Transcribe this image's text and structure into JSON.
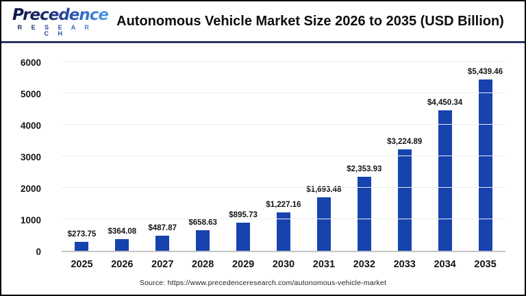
{
  "header": {
    "logo_name": "Precedence",
    "logo_subname": "R E S E A R C H",
    "title": "Autonomous Vehicle Market Size 2026 to 2035 (USD Billion)"
  },
  "chart_data": {
    "type": "bar",
    "title": "Autonomous Vehicle Market Size 2026 to 2035 (USD Billion)",
    "categories": [
      "2025",
      "2026",
      "2027",
      "2028",
      "2029",
      "2030",
      "2031",
      "2032",
      "2033",
      "2034",
      "2035"
    ],
    "values": [
      273.75,
      364.08,
      487.87,
      658.63,
      895.73,
      1227.16,
      1693.48,
      2353.93,
      3224.89,
      4450.34,
      5439.46
    ],
    "value_labels": [
      "$273.75",
      "$364.08",
      "$487.87",
      "$658.63",
      "$895.73",
      "$1,227.16",
      "$1,693.48",
      "$2,353.93",
      "$3,224.89",
      "$4,450.34",
      "$5,439.46"
    ],
    "xlabel": "",
    "ylabel": "",
    "ylim": [
      0,
      6000
    ],
    "yticks": [
      0,
      1000,
      2000,
      3000,
      4000,
      5000,
      6000
    ],
    "grid": true,
    "legend": "none",
    "bar_color": "#1743af",
    "unit": "USD Billion"
  },
  "footer": {
    "source": "Source: https://www.precedenceresearch.com/autonomous-vehicle-market"
  },
  "colors": {
    "accent_navy": "#2b3067",
    "bar_blue": "#1743af",
    "gridline": "#ececec",
    "axis_line": "#c4c4c4"
  }
}
